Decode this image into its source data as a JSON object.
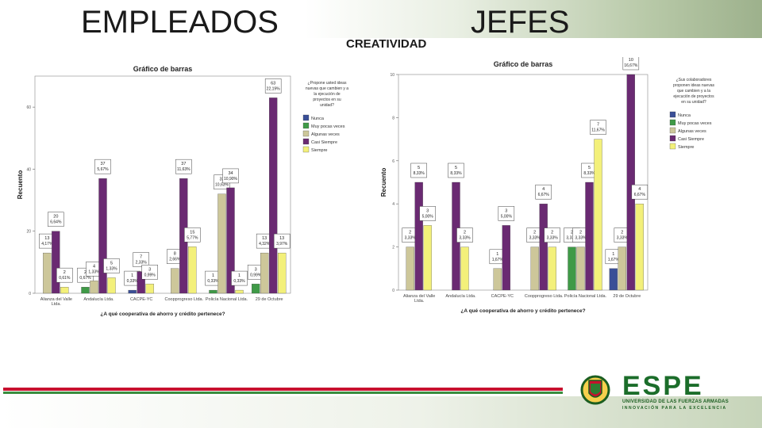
{
  "slide": {
    "title_left": "EMPLEADOS",
    "title_right": "JEFES",
    "subtitle_center": "CREATIVIDAD"
  },
  "logo": {
    "name": "ESPE",
    "subtitle": "UNIVERSIDAD DE LAS FUERZAS ARMADAS",
    "tagline": "INNOVACIÓN PARA LA EXCELENCIA",
    "icon": "espe-shield-logo"
  },
  "colors": {
    "Nunca": "#3a4f97",
    "Muy pocas veces": "#3f9a47",
    "Algunas veces": "#cdc79a",
    "Casi Siempre": "#6a2a72",
    "Siempre": "#f3f07a"
  },
  "chart_data": [
    {
      "type": "bar",
      "title": "Gráfico de barras",
      "xlabel": "¿A qué cooperativa de ahorro y crédito pertenece?",
      "ylabel": "Recuento",
      "ylim": [
        0,
        70
      ],
      "yticks": [
        "0",
        "20",
        "40",
        "60"
      ],
      "categories": [
        "Alianza del Valle Ltda.",
        "Andalucía Ltda.",
        "CACPE-YC",
        "Coopprogreso Ltda.",
        "Policía Nacional Ltda.",
        "29 de Octubre"
      ],
      "legend_title": "¿Propone usted ideas nuevas que cambien y a la ejecución de proyectos en su unidad?",
      "legend_position": "right",
      "series": [
        {
          "name": "Nunca",
          "values": [
            null,
            null,
            1,
            null,
            null,
            null
          ],
          "labels": [
            null,
            null,
            "1\n0,33%",
            null,
            null,
            null
          ]
        },
        {
          "name": "Muy pocas veces",
          "values": [
            null,
            2,
            null,
            null,
            1,
            3
          ],
          "labels": [
            null,
            "2\n0,67%",
            null,
            null,
            "1\n0,33%",
            "3\n0,99%"
          ]
        },
        {
          "name": "Algunas veces",
          "values": [
            13,
            4,
            null,
            8,
            32,
            13
          ],
          "labels": [
            "13\n4,17%",
            "4\n1,33%",
            null,
            "8\n2,66%",
            "32\n10,63%",
            "13\n4,32%"
          ]
        },
        {
          "name": "Casi Siempre",
          "values": [
            20,
            37,
            7,
            37,
            34,
            63
          ],
          "labels": [
            "20\n6,64%",
            "37\n5,67%",
            "7\n2,33%",
            "37\n11,63%",
            "34\n10,90%",
            "63\n22,19%"
          ]
        },
        {
          "name": "Siempre",
          "values": [
            2,
            5,
            3,
            15,
            1,
            13
          ],
          "labels": [
            "2\n0,61%",
            "5\n1,33%",
            "3\n0,99%",
            "15\n5,77%",
            "1\n0,33%",
            "13\n3,97%"
          ]
        }
      ]
    },
    {
      "type": "bar",
      "title": "Gráfico de barras",
      "xlabel": "¿A qué cooperativa de ahorro y crédito pertenece?",
      "ylabel": "Recuento",
      "ylim": [
        0,
        10
      ],
      "yticks": [
        "0",
        "2",
        "4",
        "6",
        "8",
        "10"
      ],
      "categories": [
        "Alianza del Valle Ltda.",
        "Andalucía Ltda.",
        "CACPE-YC",
        "Coopprogreso Ltda.",
        "Policía Nacional Ltda.",
        "29 de Octubre"
      ],
      "legend_title": "¿Sus colaboradores proponen ideas nuevas que cambien y a la ejecución de proyectos en su unidad?",
      "legend_position": "right",
      "series": [
        {
          "name": "Nunca",
          "values": [
            null,
            null,
            null,
            null,
            null,
            1
          ],
          "labels": [
            null,
            null,
            null,
            null,
            null,
            "1\n1,67%"
          ]
        },
        {
          "name": "Muy pocas veces",
          "values": [
            null,
            null,
            null,
            null,
            2,
            null
          ],
          "labels": [
            null,
            null,
            null,
            null,
            "2\n3,33%",
            null
          ]
        },
        {
          "name": "Algunas veces",
          "values": [
            2,
            null,
            1,
            2,
            2,
            2
          ],
          "labels": [
            "2\n3,33%",
            null,
            "1\n1,67%",
            "2\n3,33%",
            "2\n3,33%",
            "2\n3,33%"
          ]
        },
        {
          "name": "Casi Siempre",
          "values": [
            5,
            5,
            3,
            4,
            5,
            10
          ],
          "labels": [
            "5\n8,33%",
            "5\n8,33%",
            "3\n5,00%",
            "4\n6,67%",
            "5\n8,33%",
            "10\n16,67%"
          ]
        },
        {
          "name": "Siempre",
          "values": [
            3,
            2,
            null,
            2,
            7,
            4
          ],
          "labels": [
            "3\n5,00%",
            "2\n3,33%",
            null,
            "2\n3,33%",
            "7\n11,67%",
            "4\n6,67%"
          ]
        }
      ]
    }
  ]
}
